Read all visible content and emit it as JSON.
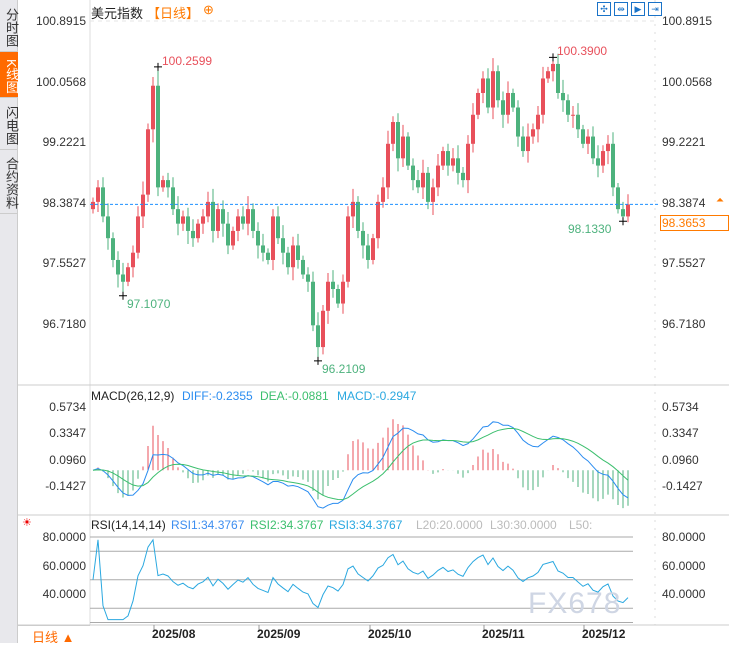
{
  "sidebar": {
    "tabs": [
      {
        "label": "分时图",
        "active": false
      },
      {
        "label": "K线图",
        "active": true
      },
      {
        "label": "闪电图",
        "active": false
      },
      {
        "label": "合约资料",
        "active": false
      }
    ]
  },
  "header": {
    "title": "美元指数",
    "period": "【日线】",
    "add_icon": "plus-circle-icon"
  },
  "toolbar": {
    "icons": [
      "crosshair-icon",
      "zoom-range-icon",
      "play-forward-icon",
      "jump-end-icon"
    ]
  },
  "colors": {
    "up": "#e8505b",
    "down": "#4db27d",
    "diff": "#2a8cf0",
    "dea": "#3cbf6e",
    "rsi": "#2aa8e0",
    "accent": "#ff6a00",
    "current_line": "#1e90ff"
  },
  "main": {
    "y_ticks": [
      "100.8915",
      "100.0568",
      "99.2221",
      "98.3874",
      "97.5527",
      "96.7180"
    ],
    "current_price": "98.3653",
    "annotations": {
      "high1": "100.2599",
      "low1": "97.1070",
      "low2": "96.2109",
      "high2": "100.3900",
      "low3": "98.1330"
    }
  },
  "macd": {
    "title": "MACD(26,12,9)",
    "diff": "DIFF:-0.2355",
    "dea": "DEA:-0.0881",
    "macd": "MACD:-0.2947",
    "y_ticks": [
      "0.5734",
      "0.3347",
      "0.0960",
      "-0.1427"
    ]
  },
  "rsi": {
    "title": "RSI(14,14,14)",
    "rsi1": "RSI1:34.3767",
    "rsi2": "RSI2:34.3767",
    "rsi3": "RSI3:34.3767",
    "l20": "L20:20.0000",
    "l30": "L30:30.0000",
    "l50": "L50:",
    "y_ticks": [
      "80.0000",
      "60.0000",
      "40.0000"
    ]
  },
  "x_axis": {
    "labels": [
      "2025/08",
      "2025/09",
      "2025/10",
      "2025/11",
      "2025/12"
    ]
  },
  "footer": {
    "period_selector": "日线 ▲"
  },
  "watermark": "FX678",
  "chart_data": {
    "type": "candlestick",
    "instrument": "美元指数",
    "period": "日线",
    "closes": [
      98.4,
      98.6,
      98.2,
      97.9,
      97.6,
      97.4,
      97.3,
      97.5,
      97.7,
      98.2,
      98.5,
      99.4,
      100.0,
      98.6,
      98.7,
      98.6,
      98.3,
      98.1,
      98.2,
      98.0,
      97.9,
      98.1,
      98.2,
      98.4,
      98.0,
      98.3,
      98.1,
      97.8,
      98.0,
      98.2,
      98.1,
      98.3,
      98.0,
      97.8,
      97.7,
      97.6,
      98.2,
      97.9,
      97.7,
      97.5,
      97.8,
      97.6,
      97.4,
      97.3,
      96.7,
      96.4,
      96.9,
      97.3,
      97.2,
      97.0,
      97.3,
      98.2,
      98.4,
      98.0,
      97.8,
      97.6,
      97.9,
      98.4,
      98.6,
      99.2,
      99.5,
      99.0,
      99.3,
      98.9,
      98.7,
      98.6,
      98.8,
      98.4,
      98.6,
      98.9,
      99.1,
      98.9,
      99.0,
      98.8,
      98.7,
      99.2,
      99.6,
      99.9,
      100.1,
      99.7,
      100.2,
      99.8,
      99.6,
      99.9,
      99.7,
      99.3,
      99.1,
      99.3,
      99.4,
      99.6,
      100.1,
      100.2,
      100.3,
      99.9,
      99.8,
      99.6,
      99.6,
      99.4,
      99.2,
      99.3,
      99.0,
      98.9,
      99.1,
      99.2,
      98.6,
      98.3,
      98.2,
      98.3653
    ],
    "marked_extremes": [
      {
        "index": 6,
        "value": 97.107,
        "type": "low"
      },
      {
        "index": 13,
        "value": 100.2599,
        "type": "high"
      },
      {
        "index": 45,
        "value": 96.2109,
        "type": "low"
      },
      {
        "index": 92,
        "value": 100.39,
        "type": "high"
      },
      {
        "index": 106,
        "value": 98.133,
        "type": "low"
      }
    ],
    "y_range": [
      96.718,
      100.8915
    ],
    "macd_range": [
      -0.1427,
      0.5734
    ],
    "rsi_range": [
      20,
      80
    ]
  }
}
